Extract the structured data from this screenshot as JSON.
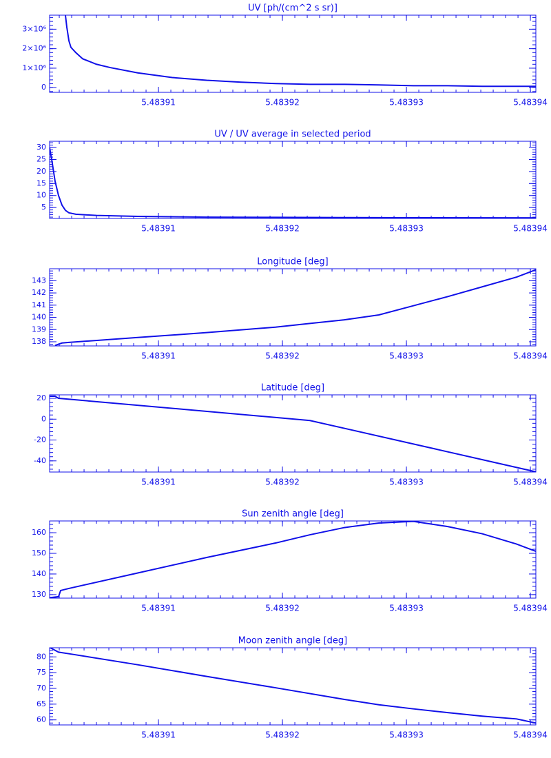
{
  "chart_data": [
    {
      "type": "line",
      "title": "UV [ph/(cm^2 s sr)]",
      "color": "#1010e8",
      "x": [
        5.4839025,
        5.48390261,
        5.48390278,
        5.48390294,
        5.48390333,
        5.48390389,
        5.483905,
        5.48390611,
        5.48390833,
        5.48391111,
        5.48391389,
        5.48391667,
        5.48391944,
        5.48392222,
        5.483925,
        5.48392778,
        5.48393056,
        5.48393333,
        5.48393611,
        5.48393889,
        5.48394044
      ],
      "values": [
        3700000,
        3100000,
        2400000,
        2070000,
        1800000,
        1480000,
        1200000,
        1030000,
        760000,
        520000,
        380000,
        280000,
        210000,
        170000,
        170000,
        140000,
        100000,
        100000,
        70000,
        70000,
        70000
      ],
      "xlim": [
        5.48390122,
        5.48394044
      ],
      "xticks": [
        5.48391,
        5.48392,
        5.48393,
        5.48394
      ],
      "ylim": [
        -240000,
        3720000
      ],
      "yticks": [
        0,
        {
          "value": 1000000,
          "label": "1×10⁶"
        },
        {
          "value": 2000000,
          "label": "2×10⁶"
        },
        {
          "value": 3000000,
          "label": "3×10⁶"
        }
      ]
    },
    {
      "type": "line",
      "title": "UV / UV average in selected period",
      "color": "#1010e8",
      "x": [
        5.48390122,
        5.48390139,
        5.48390166,
        5.48390194,
        5.48390222,
        5.4839025,
        5.48390278,
        5.48390333,
        5.483905,
        5.48390833,
        5.48391389,
        5.48391944,
        5.483925,
        5.48393056,
        5.48394044
      ],
      "values": [
        30,
        25,
        16,
        10,
        6,
        3.8,
        2.8,
        2.2,
        1.7,
        1.3,
        1.0,
        0.9,
        0.8,
        0.75,
        0.7
      ],
      "xlim": [
        5.48390122,
        5.48394044
      ],
      "xticks": [
        5.48391,
        5.48392,
        5.48393,
        5.48394
      ],
      "ylim": [
        0.45,
        32.6
      ],
      "yticks": [
        5,
        10,
        15,
        20,
        25,
        30
      ]
    },
    {
      "type": "line",
      "title": "Longitude [deg]",
      "color": "#1010e8",
      "x": [
        5.48390166,
        5.48390222,
        5.48390278,
        5.48390833,
        5.48391389,
        5.48391944,
        5.48392222,
        5.483925,
        5.48392778,
        5.48393056,
        5.48393333,
        5.48393611,
        5.48393889,
        5.48394044
      ],
      "values": [
        137.7,
        137.9,
        137.95,
        138.35,
        138.75,
        139.2,
        139.5,
        139.8,
        140.2,
        140.95,
        141.7,
        142.5,
        143.3,
        143.9
      ],
      "xlim": [
        5.48390122,
        5.48394044
      ],
      "xticks": [
        5.48391,
        5.48392,
        5.48393,
        5.48394
      ],
      "ylim": [
        137.66,
        143.98
      ],
      "yticks": [
        138,
        139,
        140,
        141,
        142,
        143
      ]
    },
    {
      "type": "line",
      "title": "Latitude [deg]",
      "color": "#1010e8",
      "x": [
        5.48390122,
        5.48390166,
        5.48390194,
        5.48392222,
        5.48394044
      ],
      "values": [
        22,
        22,
        20,
        -1.3,
        -50.5
      ],
      "xlim": [
        5.48390122,
        5.48394044
      ],
      "xticks": [
        5.48391,
        5.48392,
        5.48393,
        5.48394
      ],
      "ylim": [
        -50.7,
        23.3
      ],
      "yticks": [
        -40,
        -20,
        0,
        20
      ]
    },
    {
      "type": "line",
      "title": "Sun zenith angle [deg]",
      "color": "#1010e8",
      "x": [
        5.48390122,
        5.48390194,
        5.48390211,
        5.48390278,
        5.48390833,
        5.48391389,
        5.48391944,
        5.48392222,
        5.483925,
        5.48392778,
        5.48393056,
        5.48393333,
        5.48393611,
        5.48393889,
        5.48394044
      ],
      "values": [
        128.5,
        129,
        132,
        133,
        140.5,
        148,
        155,
        159,
        162.5,
        164.7,
        165.5,
        163,
        159.5,
        154.5,
        151
      ],
      "xlim": [
        5.48390122,
        5.48394044
      ],
      "xticks": [
        5.48391,
        5.48392,
        5.48393,
        5.48394
      ],
      "ylim": [
        128.3,
        165.7
      ],
      "yticks": [
        130,
        140,
        150,
        160
      ]
    },
    {
      "type": "line",
      "title": "Moon zenith angle [deg]",
      "color": "#1010e8",
      "x": [
        5.48390122,
        5.48390194,
        5.48390278,
        5.48390833,
        5.48391389,
        5.48391944,
        5.483925,
        5.48392778,
        5.48393056,
        5.48393333,
        5.48393611,
        5.48393889,
        5.48394044
      ],
      "values": [
        83,
        81.5,
        81,
        77.5,
        73.8,
        70.2,
        66.5,
        64.8,
        63.5,
        62.3,
        61.2,
        60.3,
        59
      ],
      "xlim": [
        5.48390122,
        5.48394044
      ],
      "xticks": [
        5.48391,
        5.48392,
        5.48393,
        5.48394
      ],
      "ylim": [
        58.4,
        82.9
      ],
      "yticks": [
        60,
        65,
        70,
        75,
        80
      ]
    }
  ]
}
